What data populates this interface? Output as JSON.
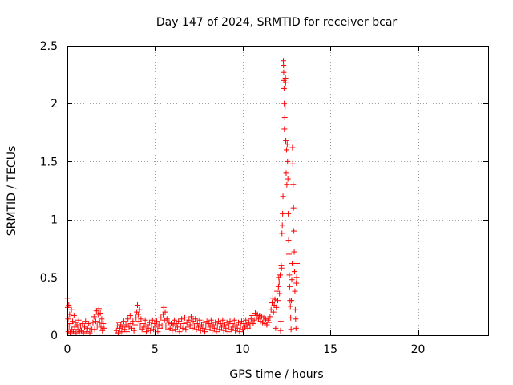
{
  "chart_data": {
    "type": "scatter",
    "title": "Day 147 of 2024, SRMTID for receiver bcar",
    "xlabel": "GPS time / hours",
    "ylabel": "SRMTID / TECUs",
    "xlim": [
      0,
      24
    ],
    "ylim": [
      0,
      2.5
    ],
    "grid": true,
    "marker": "+",
    "colors": {
      "series": "#ff0000",
      "grid": "#a0a0a0",
      "axis": "#000000"
    },
    "x_ticks": [
      {
        "value": 0,
        "label": "0"
      },
      {
        "value": 5,
        "label": "5"
      },
      {
        "value": 10,
        "label": "10"
      },
      {
        "value": 15,
        "label": "15"
      },
      {
        "value": 20,
        "label": "20"
      }
    ],
    "y_ticks": [
      {
        "value": 0,
        "label": "0"
      },
      {
        "value": 0.5,
        "label": "0.5"
      },
      {
        "value": 1,
        "label": "1"
      },
      {
        "value": 1.5,
        "label": "1.5"
      },
      {
        "value": 2,
        "label": "2"
      },
      {
        "value": 2.5,
        "label": "2.5"
      }
    ],
    "series": [
      {
        "name": "bcar",
        "points": [
          [
            0.0,
            0.32
          ],
          [
            0.02,
            0.24
          ],
          [
            0.04,
            0.14
          ],
          [
            0.05,
            0.03
          ],
          [
            0.08,
            0.26
          ],
          [
            0.1,
            0.08
          ],
          [
            0.13,
            0.18
          ],
          [
            0.16,
            0.02
          ],
          [
            0.2,
            0.1
          ],
          [
            0.23,
            0.22
          ],
          [
            0.26,
            0.05
          ],
          [
            0.3,
            0.12
          ],
          [
            0.34,
            0.03
          ],
          [
            0.38,
            0.17
          ],
          [
            0.42,
            0.07
          ],
          [
            0.46,
            0.11
          ],
          [
            0.5,
            0.02
          ],
          [
            0.55,
            0.09
          ],
          [
            0.6,
            0.05
          ],
          [
            0.65,
            0.13
          ],
          [
            0.7,
            0.03
          ],
          [
            0.75,
            0.08
          ],
          [
            0.8,
            0.04
          ],
          [
            0.86,
            0.1
          ],
          [
            0.92,
            0.02
          ],
          [
            0.98,
            0.07
          ],
          [
            1.04,
            0.12
          ],
          [
            1.1,
            0.03
          ],
          [
            1.16,
            0.06
          ],
          [
            1.22,
            0.1
          ],
          [
            1.28,
            0.02
          ],
          [
            1.34,
            0.08
          ],
          [
            1.4,
            0.05
          ],
          [
            1.46,
            0.11
          ],
          [
            1.52,
            0.16
          ],
          [
            1.56,
            0.05
          ],
          [
            1.62,
            0.12
          ],
          [
            1.66,
            0.21
          ],
          [
            1.7,
            0.08
          ],
          [
            1.75,
            0.18
          ],
          [
            1.8,
            0.23
          ],
          [
            1.84,
            0.11
          ],
          [
            1.88,
            0.19
          ],
          [
            1.92,
            0.07
          ],
          [
            1.96,
            0.14
          ],
          [
            2.0,
            0.04
          ],
          [
            2.05,
            0.1
          ],
          [
            2.1,
            0.06
          ],
          [
            2.8,
            0.04
          ],
          [
            2.85,
            0.08
          ],
          [
            2.9,
            0.02
          ],
          [
            2.95,
            0.11
          ],
          [
            3.0,
            0.06
          ],
          [
            3.05,
            0.09
          ],
          [
            3.1,
            0.03
          ],
          [
            3.15,
            0.07
          ],
          [
            3.22,
            0.12
          ],
          [
            3.28,
            0.05
          ],
          [
            3.34,
            0.09
          ],
          [
            3.4,
            0.03
          ],
          [
            3.46,
            0.14
          ],
          [
            3.52,
            0.07
          ],
          [
            3.58,
            0.17
          ],
          [
            3.62,
            0.1
          ],
          [
            3.68,
            0.06
          ],
          [
            3.74,
            0.12
          ],
          [
            3.8,
            0.04
          ],
          [
            3.86,
            0.09
          ],
          [
            3.92,
            0.15
          ],
          [
            3.96,
            0.2
          ],
          [
            4.0,
            0.26
          ],
          [
            4.04,
            0.18
          ],
          [
            4.08,
            0.12
          ],
          [
            4.12,
            0.22
          ],
          [
            4.16,
            0.08
          ],
          [
            4.2,
            0.14
          ],
          [
            4.26,
            0.05
          ],
          [
            4.32,
            0.1
          ],
          [
            4.38,
            0.07
          ],
          [
            4.44,
            0.13
          ],
          [
            4.5,
            0.03
          ],
          [
            4.56,
            0.09
          ],
          [
            4.62,
            0.06
          ],
          [
            4.68,
            0.11
          ],
          [
            4.74,
            0.04
          ],
          [
            4.8,
            0.08
          ],
          [
            4.86,
            0.13
          ],
          [
            4.92,
            0.05
          ],
          [
            4.98,
            0.1
          ],
          [
            5.04,
            0.07
          ],
          [
            5.1,
            0.12
          ],
          [
            5.16,
            0.03
          ],
          [
            5.22,
            0.09
          ],
          [
            5.28,
            0.06
          ],
          [
            5.34,
            0.15
          ],
          [
            5.4,
            0.08
          ],
          [
            5.46,
            0.18
          ],
          [
            5.5,
            0.24
          ],
          [
            5.54,
            0.13
          ],
          [
            5.58,
            0.2
          ],
          [
            5.62,
            0.08
          ],
          [
            5.68,
            0.14
          ],
          [
            5.74,
            0.05
          ],
          [
            5.8,
            0.11
          ],
          [
            5.86,
            0.06
          ],
          [
            5.92,
            0.1
          ],
          [
            5.98,
            0.04
          ],
          [
            6.04,
            0.09
          ],
          [
            6.1,
            0.13
          ],
          [
            6.16,
            0.05
          ],
          [
            6.22,
            0.1
          ],
          [
            6.28,
            0.07
          ],
          [
            6.34,
            0.12
          ],
          [
            6.4,
            0.03
          ],
          [
            6.46,
            0.08
          ],
          [
            6.52,
            0.14
          ],
          [
            6.58,
            0.06
          ],
          [
            6.64,
            0.1
          ],
          [
            6.7,
            0.15
          ],
          [
            6.76,
            0.05
          ],
          [
            6.82,
            0.11
          ],
          [
            6.88,
            0.07
          ],
          [
            6.94,
            0.13
          ],
          [
            7.0,
            0.09
          ],
          [
            7.06,
            0.16
          ],
          [
            7.12,
            0.06
          ],
          [
            7.18,
            0.12
          ],
          [
            7.24,
            0.08
          ],
          [
            7.3,
            0.14
          ],
          [
            7.36,
            0.05
          ],
          [
            7.42,
            0.1
          ],
          [
            7.48,
            0.07
          ],
          [
            7.54,
            0.13
          ],
          [
            7.6,
            0.04
          ],
          [
            7.66,
            0.09
          ],
          [
            7.72,
            0.06
          ],
          [
            7.78,
            0.11
          ],
          [
            7.84,
            0.03
          ],
          [
            7.9,
            0.08
          ],
          [
            7.96,
            0.12
          ],
          [
            8.02,
            0.05
          ],
          [
            8.08,
            0.1
          ],
          [
            8.14,
            0.07
          ],
          [
            8.2,
            0.13
          ],
          [
            8.26,
            0.04
          ],
          [
            8.32,
            0.09
          ],
          [
            8.38,
            0.06
          ],
          [
            8.44,
            0.11
          ],
          [
            8.5,
            0.03
          ],
          [
            8.56,
            0.08
          ],
          [
            8.62,
            0.12
          ],
          [
            8.68,
            0.05
          ],
          [
            8.74,
            0.1
          ],
          [
            8.8,
            0.07
          ],
          [
            8.86,
            0.13
          ],
          [
            8.92,
            0.04
          ],
          [
            8.98,
            0.09
          ],
          [
            9.04,
            0.06
          ],
          [
            9.1,
            0.11
          ],
          [
            9.16,
            0.03
          ],
          [
            9.22,
            0.08
          ],
          [
            9.28,
            0.12
          ],
          [
            9.34,
            0.05
          ],
          [
            9.4,
            0.1
          ],
          [
            9.46,
            0.07
          ],
          [
            9.52,
            0.13
          ],
          [
            9.58,
            0.04
          ],
          [
            9.64,
            0.09
          ],
          [
            9.7,
            0.06
          ],
          [
            9.76,
            0.11
          ],
          [
            9.82,
            0.03
          ],
          [
            9.88,
            0.08
          ],
          [
            9.94,
            0.12
          ],
          [
            10.0,
            0.05
          ],
          [
            10.06,
            0.1
          ],
          [
            10.12,
            0.07
          ],
          [
            10.18,
            0.13
          ],
          [
            10.24,
            0.09
          ],
          [
            10.3,
            0.06
          ],
          [
            10.36,
            0.11
          ],
          [
            10.42,
            0.08
          ],
          [
            10.48,
            0.14
          ],
          [
            10.54,
            0.17
          ],
          [
            10.6,
            0.1
          ],
          [
            10.66,
            0.13
          ],
          [
            10.72,
            0.19
          ],
          [
            10.78,
            0.15
          ],
          [
            10.84,
            0.18
          ],
          [
            10.9,
            0.14
          ],
          [
            10.96,
            0.17
          ],
          [
            11.02,
            0.12
          ],
          [
            11.08,
            0.16
          ],
          [
            11.14,
            0.11
          ],
          [
            11.2,
            0.15
          ],
          [
            11.26,
            0.1
          ],
          [
            11.32,
            0.14
          ],
          [
            11.38,
            0.09
          ],
          [
            11.44,
            0.13
          ],
          [
            11.5,
            0.11
          ],
          [
            11.56,
            0.16
          ],
          [
            11.62,
            0.22
          ],
          [
            11.68,
            0.28
          ],
          [
            11.72,
            0.32
          ],
          [
            11.76,
            0.2
          ],
          [
            11.8,
            0.26
          ],
          [
            11.84,
            0.31
          ],
          [
            11.88,
            0.06
          ],
          [
            11.92,
            0.24
          ],
          [
            11.96,
            0.38
          ],
          [
            12.0,
            0.3
          ],
          [
            12.04,
            0.42
          ],
          [
            12.06,
            0.5
          ],
          [
            12.08,
            0.46
          ],
          [
            12.1,
            0.36
          ],
          [
            12.14,
            0.52
          ],
          [
            12.16,
            0.04
          ],
          [
            12.18,
            0.12
          ],
          [
            12.2,
            0.6
          ],
          [
            12.22,
            0.58
          ],
          [
            12.24,
            0.88
          ],
          [
            12.26,
            0.95
          ],
          [
            12.28,
            1.05
          ],
          [
            12.3,
            1.2
          ],
          [
            12.32,
            2.37
          ],
          [
            12.33,
            2.33
          ],
          [
            12.34,
            2.27
          ],
          [
            12.35,
            2.2
          ],
          [
            12.36,
            2.13
          ],
          [
            12.37,
            2.0
          ],
          [
            12.38,
            1.78
          ],
          [
            12.4,
            1.88
          ],
          [
            12.42,
            1.97
          ],
          [
            12.44,
            2.22
          ],
          [
            12.45,
            2.18
          ],
          [
            12.46,
            1.68
          ],
          [
            12.48,
            1.4
          ],
          [
            12.5,
            1.6
          ],
          [
            12.52,
            1.3
          ],
          [
            12.54,
            1.65
          ],
          [
            12.56,
            1.5
          ],
          [
            12.58,
            1.35
          ],
          [
            12.6,
            1.05
          ],
          [
            12.62,
            0.82
          ],
          [
            12.64,
            0.7
          ],
          [
            12.66,
            0.52
          ],
          [
            12.68,
            0.42
          ],
          [
            12.7,
            0.3
          ],
          [
            12.72,
            0.25
          ],
          [
            12.74,
            0.15
          ],
          [
            12.76,
            0.05
          ],
          [
            12.78,
            0.3
          ],
          [
            12.8,
            0.48
          ],
          [
            12.82,
            0.62
          ],
          [
            12.84,
            1.62
          ],
          [
            12.86,
            1.48
          ],
          [
            12.88,
            1.3
          ],
          [
            12.9,
            1.1
          ],
          [
            12.92,
            0.9
          ],
          [
            12.94,
            0.72
          ],
          [
            12.96,
            0.55
          ],
          [
            12.98,
            0.38
          ],
          [
            13.0,
            0.22
          ],
          [
            13.02,
            0.14
          ],
          [
            13.04,
            0.06
          ],
          [
            13.06,
            0.45
          ],
          [
            13.08,
            0.5
          ],
          [
            13.1,
            0.62
          ]
        ]
      }
    ]
  }
}
